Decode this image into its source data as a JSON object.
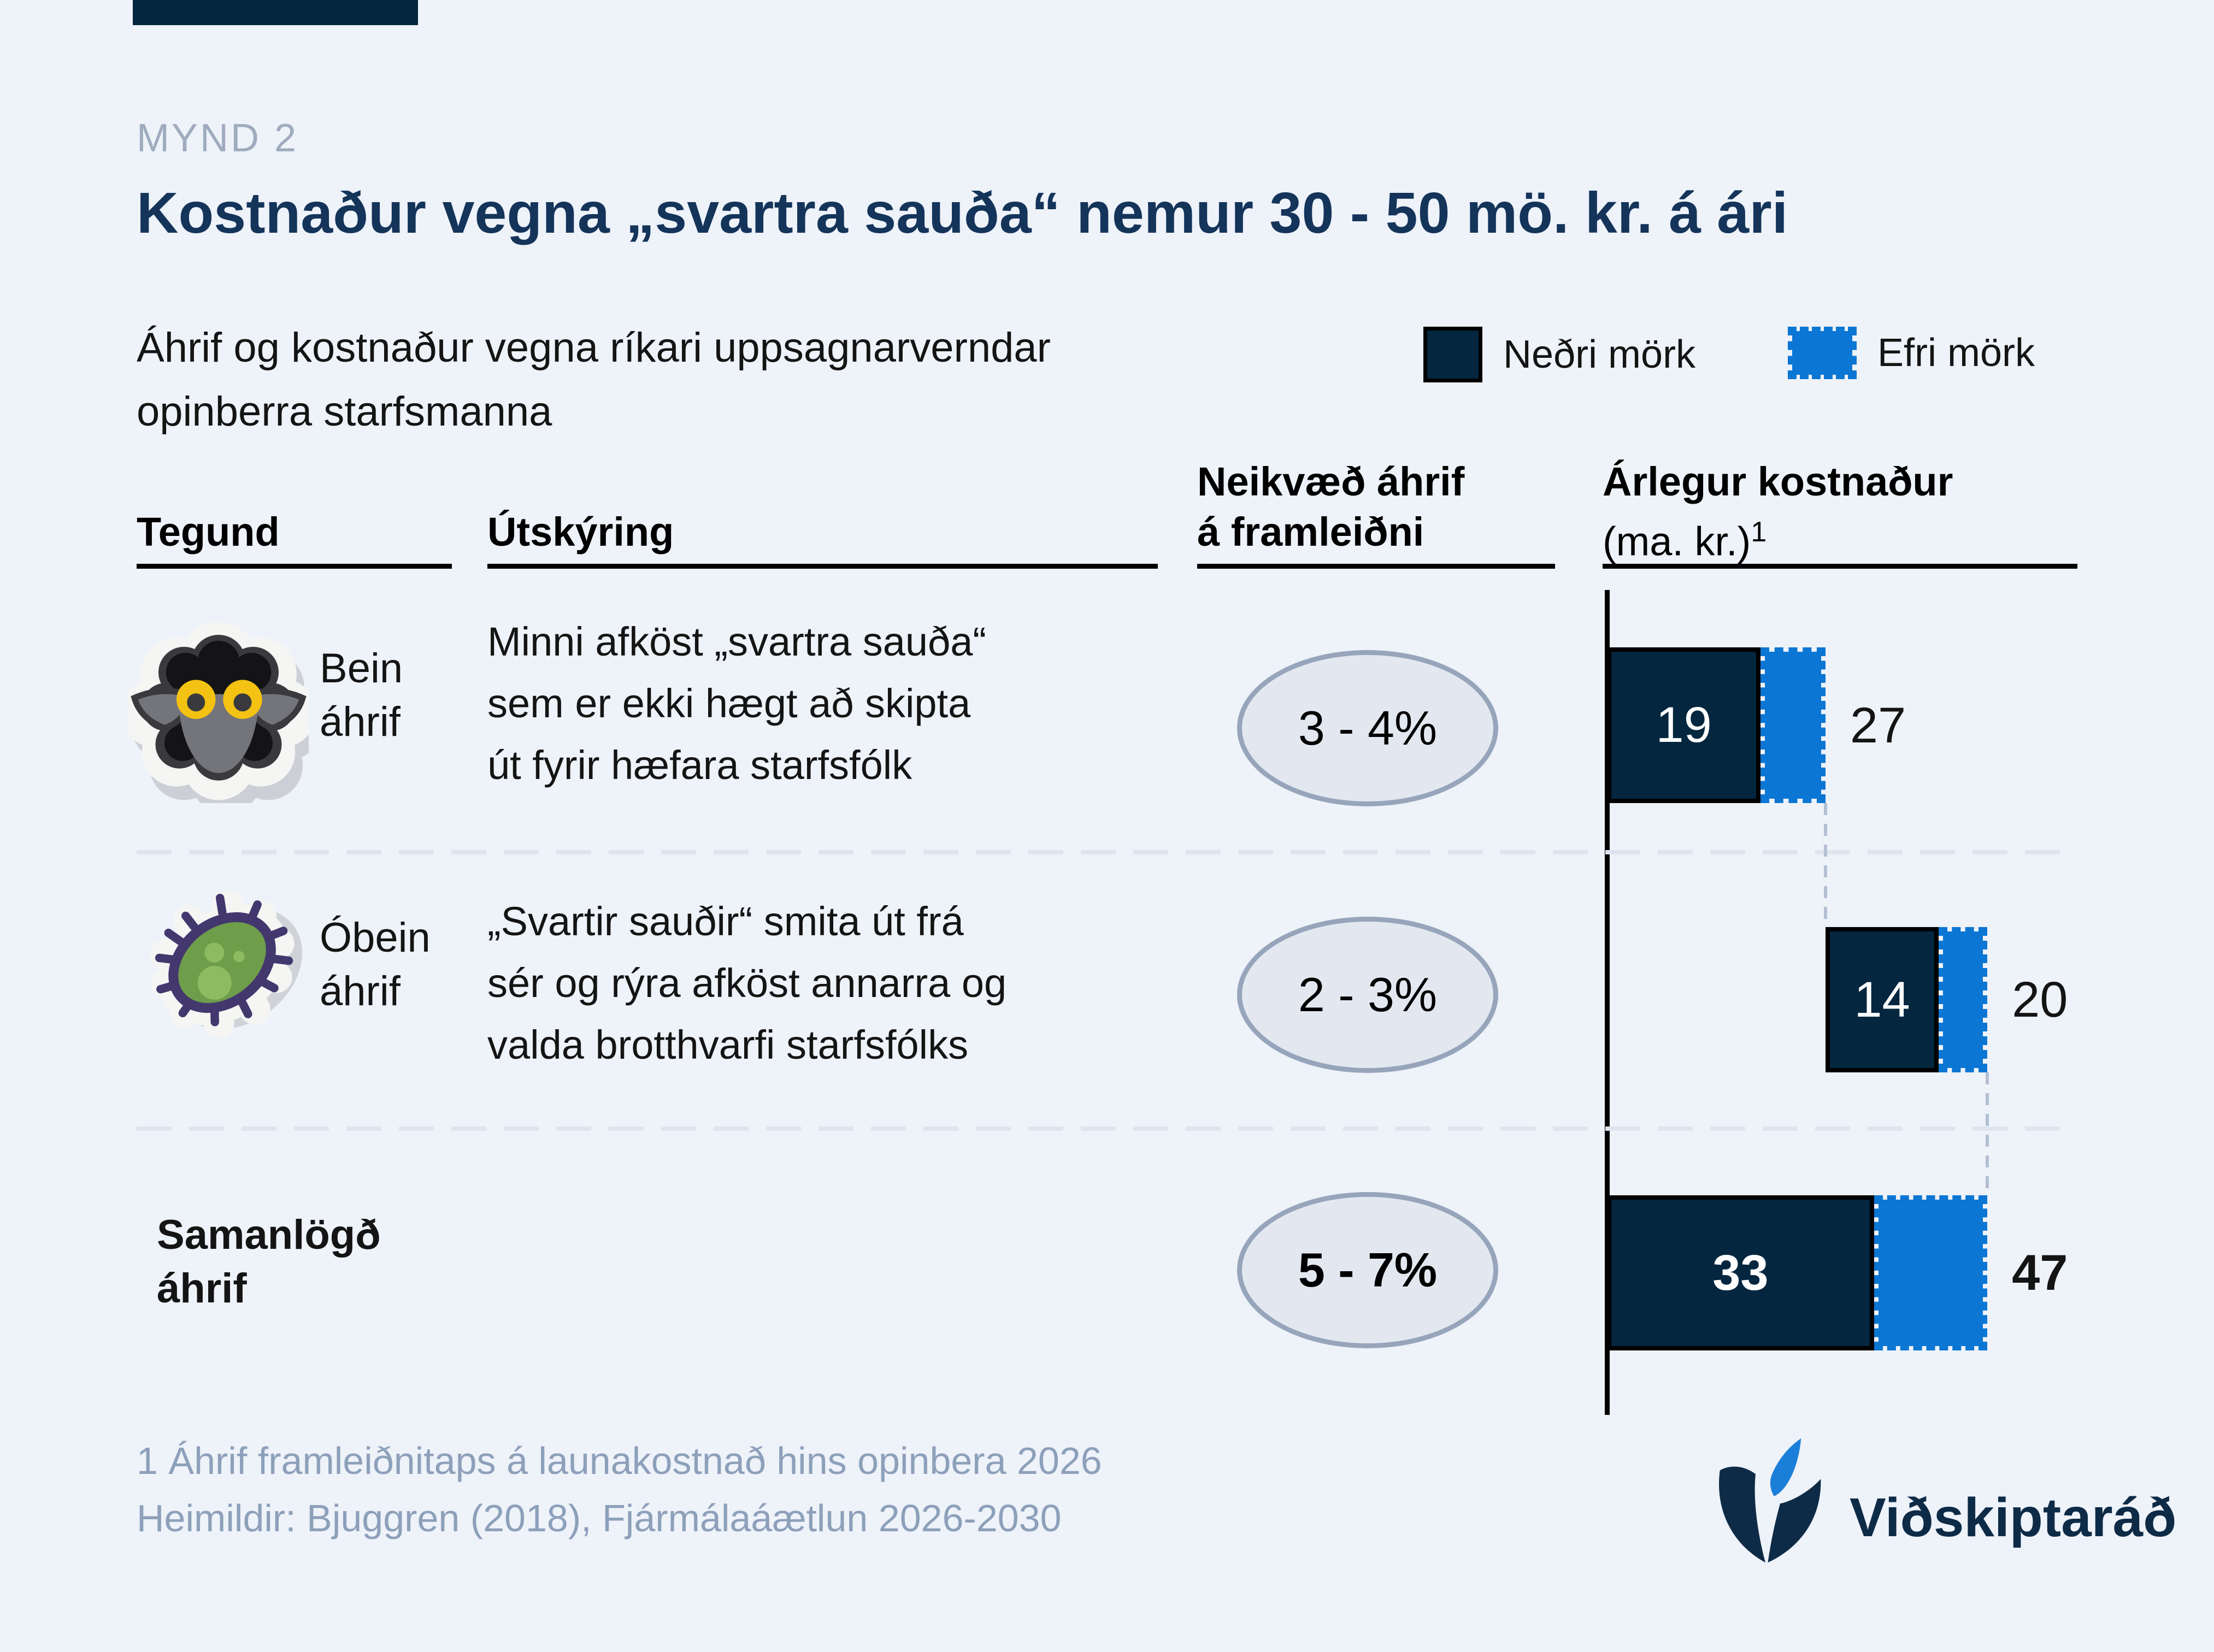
{
  "figure": {
    "tag": "MYND 2",
    "title": "Kostnaður vegna „svartra sauða“ nemur 30 - 50 mö. kr. á ári",
    "subtitle_lines": [
      "Áhrif og kostnaður vegna ríkari uppsagnarverndar",
      "opinberra starfsmanna"
    ]
  },
  "legend": {
    "lower_label": "Neðri mörk",
    "upper_label": "Efri mörk"
  },
  "headers": {
    "col1": "Tegund",
    "col2": "Útskýring",
    "col3_lines": [
      "Neikvæð áhrif",
      "á framleiðni"
    ],
    "col4_line1": "Árlegur kostnaður",
    "col4_line2": "(ma. kr.)",
    "col4_sup": "1"
  },
  "rows": [
    {
      "icon": "black-sheep-icon",
      "type_lines": [
        "Bein",
        "áhrif"
      ],
      "desc_lines": [
        "Minni afköst „svartra sauða“",
        "sem er ekki hægt að skipta",
        "út fyrir hæfara starfsfólk"
      ],
      "impact": "3 - 4%",
      "start": 0,
      "lower": 19,
      "upper": 27,
      "lower_label": "19",
      "upper_label": "27"
    },
    {
      "icon": "germ-icon",
      "type_lines": [
        "Óbein",
        "áhrif"
      ],
      "desc_lines": [
        "„Svartir sauðir“ smita út frá",
        "sér og rýra afköst annarra og",
        "valda brotthvarfi starfsfólks"
      ],
      "impact": "2 - 3%",
      "start": 27,
      "lower": 14,
      "upper": 20,
      "lower_label": "14",
      "upper_label": "20"
    },
    {
      "icon": null,
      "type_lines": [
        "Samanlögð",
        "áhrif"
      ],
      "desc_lines": [],
      "impact": "5 - 7%",
      "start": 0,
      "lower": 33,
      "upper": 47,
      "lower_label": "33",
      "upper_label": "47"
    }
  ],
  "chart_data": {
    "type": "bar",
    "subtype": "horizontal-range-waterfall",
    "title": "Árlegur kostnaður (ma. kr.)",
    "categories": [
      "Bein áhrif",
      "Óbein áhrif",
      "Samanlögð áhrif"
    ],
    "series": [
      {
        "name": "Neðri mörk",
        "values": [
          19,
          14,
          33
        ]
      },
      {
        "name": "Efri mörk",
        "values": [
          27,
          20,
          47
        ]
      }
    ],
    "bar_starts": [
      0,
      27,
      0
    ],
    "productivity_impact": [
      "3 - 4%",
      "2 - 3%",
      "5 - 7%"
    ],
    "xlim": [
      0,
      52
    ],
    "grid": false,
    "legend_position": "top-right",
    "colors": {
      "lower": "#04263f",
      "upper": "#0b76d3",
      "background": "#eef2f9"
    }
  },
  "footnotes": {
    "line1": "1 Áhrif framleiðnitaps á launakostnað hins opinbera 2026",
    "line2": "Heimildir: Bjuggren (2018), Fjármálaáætlun 2026-2030"
  },
  "logo": {
    "text": "Viðskiptaráð"
  }
}
